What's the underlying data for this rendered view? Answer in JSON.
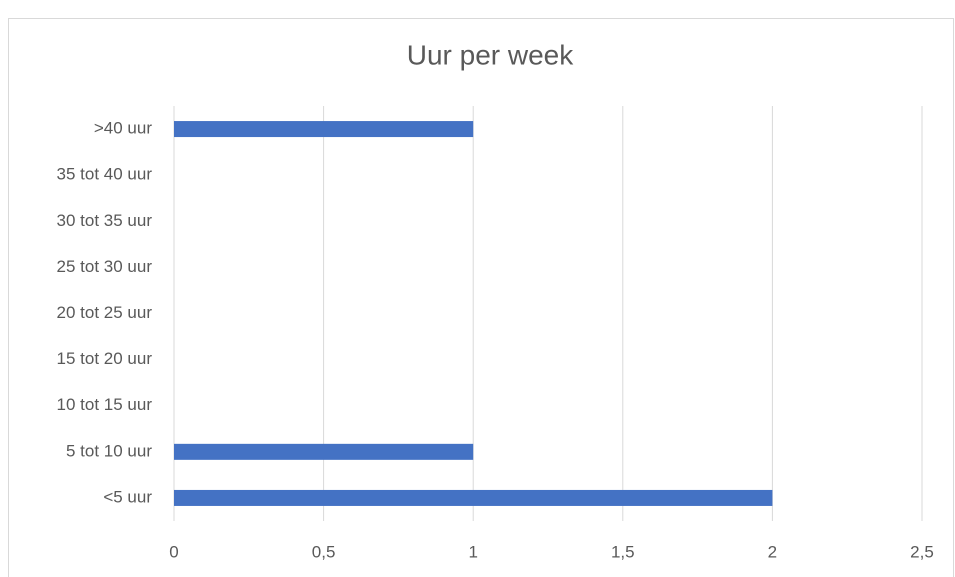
{
  "chart_data": {
    "type": "barh",
    "title": "Uur per week",
    "categories": [
      "<5 uur",
      "5 tot 10 uur",
      "10 tot 15 uur",
      "15 tot 20 uur",
      "20 tot 25 uur",
      "25 tot 30 uur",
      "30 tot 35 uur",
      "35 tot 40 uur",
      ">40 uur"
    ],
    "values": [
      2,
      1,
      0,
      0,
      0,
      0,
      0,
      0,
      1
    ],
    "color": "#4472c4",
    "xlim": [
      0,
      2.5
    ],
    "xticks": [
      0,
      {
        "value": 0.5,
        "label": "0,5"
      },
      1,
      {
        "value": 1.5,
        "label": "1,5"
      },
      2,
      {
        "value": 2.5,
        "label": "2,5"
      }
    ],
    "grid": true
  }
}
